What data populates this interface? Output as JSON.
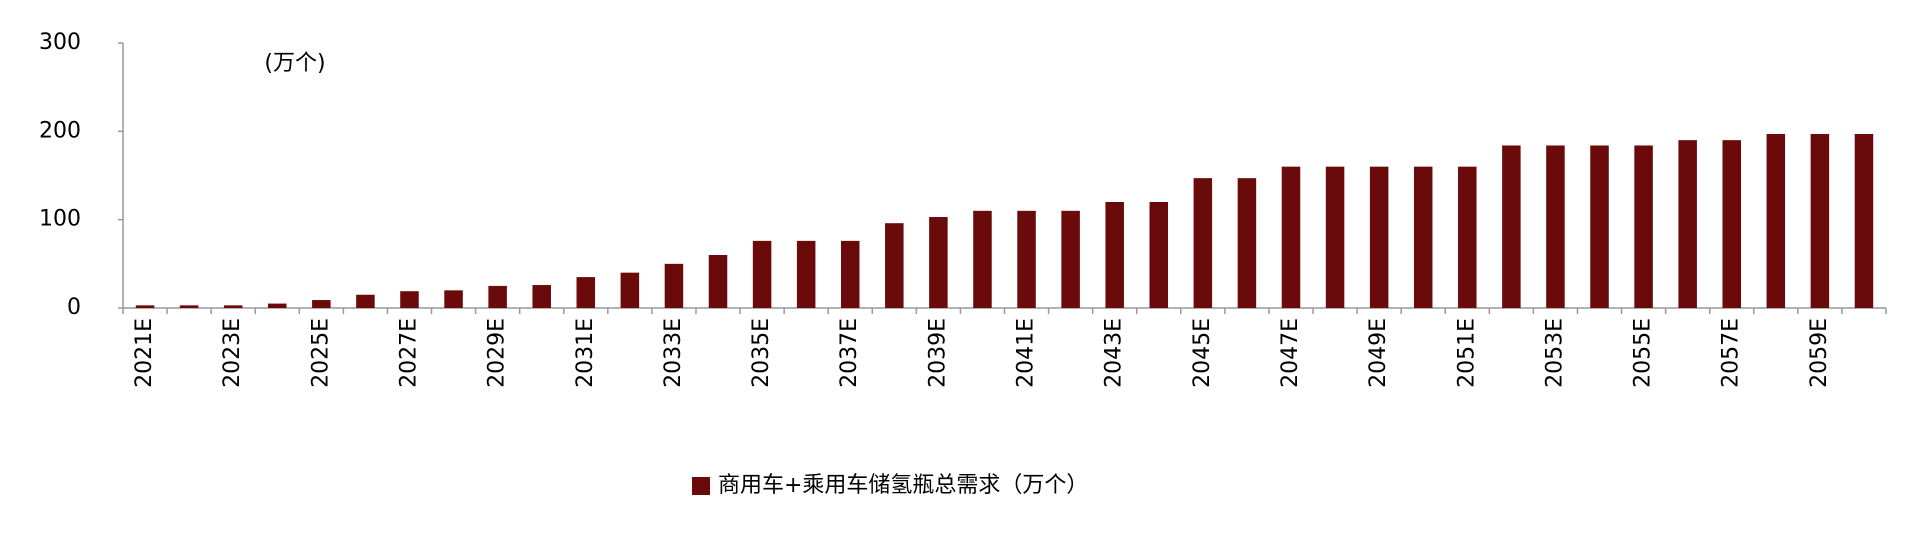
{
  "chart_data": {
    "type": "bar",
    "annotation": "(万个)",
    "categories": [
      "2021E",
      null,
      "2023E",
      null,
      "2025E",
      null,
      "2027E",
      null,
      "2029E",
      null,
      "2031E",
      null,
      "2033E",
      null,
      "2035E",
      null,
      "2037E",
      null,
      "2039E",
      null,
      "2041E",
      null,
      "2043E",
      null,
      "2045E",
      null,
      "2047E",
      null,
      "2049E",
      null,
      "2051E",
      null,
      "2053E",
      null,
      "2055E",
      null,
      "2057E",
      null,
      "2059E",
      null
    ],
    "series": [
      {
        "name": "商用车+乘用车储氢瓶总需求（万个）",
        "color": "#6b0a0a",
        "values": [
          3,
          3,
          3,
          5,
          9,
          15,
          19,
          20,
          25,
          26,
          35,
          40,
          50,
          60,
          76,
          76,
          76,
          96,
          103,
          110,
          110,
          110,
          120,
          120,
          147,
          147,
          160,
          160,
          160,
          160,
          160,
          184,
          184,
          184,
          184,
          190,
          190,
          197,
          197,
          197
        ]
      }
    ],
    "ylim": [
      0,
      300
    ],
    "yticks": [
      0,
      100,
      200,
      300
    ],
    "grid": false,
    "legend": "bottom"
  }
}
